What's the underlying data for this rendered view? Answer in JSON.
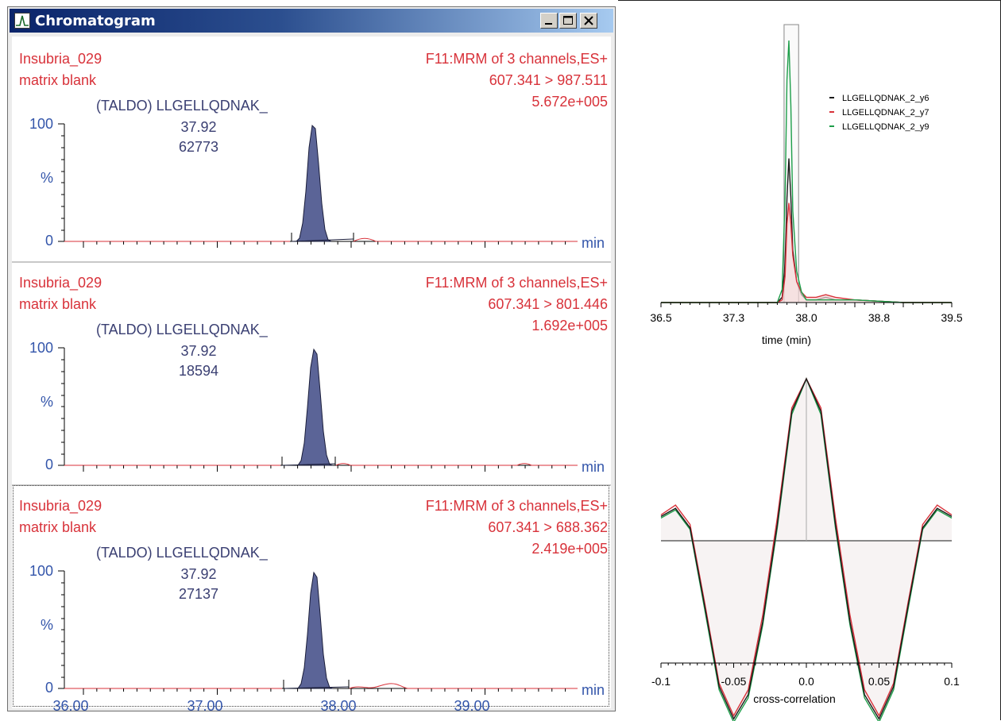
{
  "window": {
    "title": "Chromatogram",
    "icon": "chromatogram-peak-icon",
    "controls": [
      "minimize-icon",
      "maximize-icon",
      "close-icon"
    ]
  },
  "colors": {
    "sample_text": "#d8323a",
    "peak_label": "#3a3f72",
    "peak_fill": "#5b6497",
    "axis_numbers": "#3355aa",
    "titlebar": "#0a246a",
    "y6": "#1a1a1a",
    "y7": "#d8323a",
    "y9": "#1e9e4a"
  },
  "panels": [
    {
      "sample": "Insubria_029",
      "description": "matrix blank",
      "function": "F11:MRM of 3 channels,ES+",
      "transition": "607.341 > 987.511",
      "intensity": "5.672e+005",
      "peak_name": "(TALDO) LLGELLQDNAK_",
      "rt": "37.92",
      "area": "62773"
    },
    {
      "sample": "Insubria_029",
      "description": "matrix blank",
      "function": "F11:MRM of 3 channels,ES+",
      "transition": "607.341 > 801.446",
      "intensity": "1.692e+005",
      "peak_name": "(TALDO) LLGELLQDNAK_",
      "rt": "37.92",
      "area": "18594"
    },
    {
      "sample": "Insubria_029",
      "description": "matrix blank",
      "function": "F11:MRM of 3 channels,ES+",
      "transition": "607.341 > 688.362",
      "intensity": "2.419e+005",
      "peak_name": "(TALDO) LLGELLQDNAK_",
      "rt": "37.92",
      "area": "27137"
    }
  ],
  "axis": {
    "y_top": "100",
    "y_mid": "%",
    "y_zero": "0",
    "x_unit": "min",
    "x_ticks": [
      "36.00",
      "37.00",
      "38.00",
      "39.00"
    ]
  },
  "chart_data": [
    {
      "type": "line",
      "xlabel": "time (min)",
      "ylabel": "",
      "xlim": [
        36.5,
        39.5
      ],
      "x_ticks": [
        "36.5",
        "37.3",
        "38.0",
        "38.8",
        "39.5"
      ],
      "legend_position": "top-right",
      "highlight_window": [
        37.77,
        37.92
      ],
      "x": [
        36.5,
        37.5,
        37.7,
        37.75,
        37.78,
        37.8,
        37.82,
        37.84,
        37.86,
        37.9,
        37.95,
        38.0,
        38.1,
        38.2,
        38.3,
        38.5,
        39.0,
        39.5
      ],
      "series": [
        {
          "name": "LLGELLQDNAK_2_y6",
          "values": [
            0,
            0,
            0,
            0.02,
            0.15,
            0.4,
            0.55,
            0.4,
            0.2,
            0.08,
            0.03,
            0.01,
            0.01,
            0.02,
            0.01,
            0.01,
            0,
            0
          ]
        },
        {
          "name": "LLGELLQDNAK_2_y7",
          "values": [
            0,
            0,
            0,
            0.01,
            0.1,
            0.3,
            0.38,
            0.3,
            0.18,
            0.08,
            0.04,
            0.02,
            0.02,
            0.03,
            0.02,
            0.01,
            0,
            0
          ]
        },
        {
          "name": "LLGELLQDNAK_2_y9",
          "values": [
            0,
            0,
            0,
            0.05,
            0.4,
            0.85,
            1.0,
            0.75,
            0.35,
            0.12,
            0.04,
            0.01,
            0.01,
            0.01,
            0.01,
            0.01,
            0,
            0
          ]
        }
      ]
    },
    {
      "type": "line",
      "xlabel": "cross-correlation",
      "ylabel": "",
      "xlim": [
        -0.1,
        0.1
      ],
      "x_ticks": [
        "-0.1",
        "-0.05",
        "0.0",
        "0.05",
        "0.1"
      ],
      "x": [
        -0.1,
        -0.09,
        -0.08,
        -0.07,
        -0.06,
        -0.05,
        -0.04,
        -0.03,
        -0.02,
        -0.01,
        0.0,
        0.01,
        0.02,
        0.03,
        0.04,
        0.05,
        0.06,
        0.07,
        0.08,
        0.09,
        0.1
      ],
      "series": [
        {
          "name": "LLGELLQDNAK_2_y6",
          "values": [
            0.15,
            0.2,
            0.08,
            -0.4,
            -0.9,
            -1.1,
            -0.95,
            -0.5,
            0.1,
            0.8,
            1.0,
            0.8,
            0.1,
            -0.5,
            -0.95,
            -1.1,
            -0.9,
            -0.4,
            0.08,
            0.2,
            0.15
          ]
        },
        {
          "name": "LLGELLQDNAK_2_y7",
          "values": [
            0.16,
            0.22,
            0.1,
            -0.38,
            -0.88,
            -1.08,
            -0.92,
            -0.46,
            0.14,
            0.82,
            1.0,
            0.82,
            0.14,
            -0.46,
            -0.92,
            -1.08,
            -0.88,
            -0.38,
            0.1,
            0.22,
            0.16
          ]
        },
        {
          "name": "LLGELLQDNAK_2_y9",
          "values": [
            0.14,
            0.19,
            0.07,
            -0.42,
            -0.92,
            -1.12,
            -0.97,
            -0.52,
            0.08,
            0.78,
            1.0,
            0.78,
            0.08,
            -0.52,
            -0.97,
            -1.12,
            -0.92,
            -0.42,
            0.07,
            0.19,
            0.14
          ]
        }
      ]
    }
  ]
}
